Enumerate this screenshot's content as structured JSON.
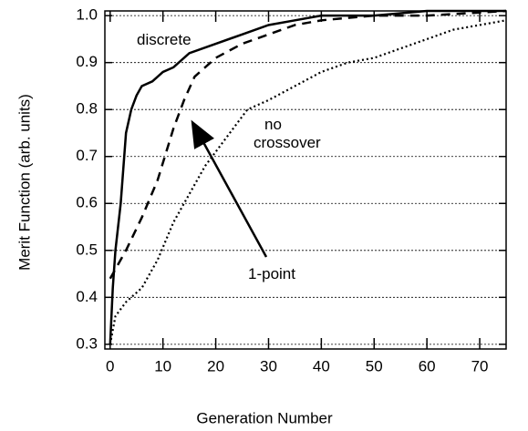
{
  "chart_data": {
    "type": "line",
    "x_label": "Generation Number",
    "y_label": "Merit Function (arb. units)",
    "xlim": [
      -1,
      75
    ],
    "ylim": [
      0.29,
      1.01
    ],
    "xticks": [
      0,
      10,
      20,
      30,
      40,
      50,
      60,
      70
    ],
    "yticks": [
      0.3,
      0.4,
      0.5,
      0.6,
      0.7,
      0.8,
      0.9,
      {
        "value": 1,
        "label": "1.0"
      }
    ],
    "grid": true,
    "series": [
      {
        "name": "discrete",
        "color": "#000000",
        "style": "solid",
        "x": [
          0,
          0.5,
          1,
          2,
          3,
          4,
          5,
          6,
          8,
          10,
          12,
          15,
          20,
          25,
          30,
          35,
          40,
          50,
          60,
          75
        ],
        "values": [
          0.3,
          0.42,
          0.5,
          0.6,
          0.75,
          0.8,
          0.83,
          0.85,
          0.86,
          0.88,
          0.89,
          0.92,
          0.94,
          0.96,
          0.98,
          0.99,
          1.0,
          1.0,
          1.01,
          1.01
        ]
      },
      {
        "name": "1-point",
        "color": "#000000",
        "style": "dashed",
        "x": [
          0,
          3,
          6,
          9,
          12,
          14,
          16,
          20,
          25,
          30,
          35,
          40,
          50,
          60,
          75
        ],
        "values": [
          0.44,
          0.5,
          0.57,
          0.65,
          0.76,
          0.82,
          0.87,
          0.91,
          0.94,
          0.96,
          0.98,
          0.99,
          1.0,
          1.0,
          1.01
        ]
      },
      {
        "name": "no crossover",
        "color": "#000000",
        "style": "dotted",
        "x": [
          0,
          1,
          3,
          6,
          9,
          12,
          15,
          18,
          22,
          26,
          30,
          35,
          40,
          45,
          50,
          55,
          60,
          65,
          70,
          75
        ],
        "values": [
          0.3,
          0.36,
          0.39,
          0.42,
          0.48,
          0.56,
          0.62,
          0.68,
          0.74,
          0.8,
          0.82,
          0.85,
          0.88,
          0.9,
          0.91,
          0.93,
          0.95,
          0.97,
          0.98,
          0.99
        ]
      }
    ]
  }
}
